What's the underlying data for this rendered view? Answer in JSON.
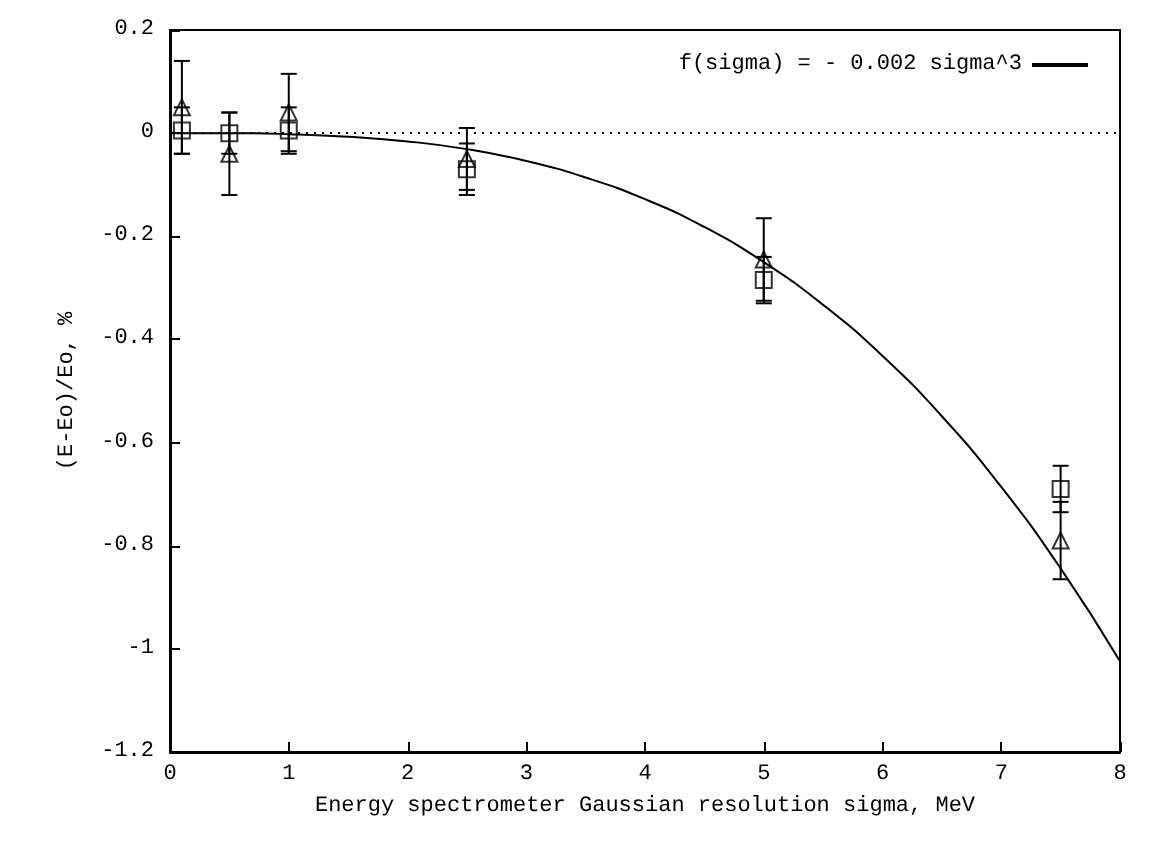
{
  "chart_data": {
    "type": "scatter",
    "xlabel": "Energy spectrometer Gaussian resolution sigma, MeV",
    "ylabel": "(E-Eo)/Eo, %",
    "xlim": [
      0,
      8
    ],
    "xticks": [
      0,
      1,
      2,
      3,
      4,
      5,
      6,
      7,
      8
    ],
    "ylim": [
      -1.2,
      0.2
    ],
    "yticks": [
      -1.2,
      -1,
      -0.8,
      -0.6,
      -0.4,
      -0.2,
      0,
      0.2
    ],
    "grid": false,
    "legend": "top right",
    "series": [
      {
        "marker": "triangle",
        "color": "#000000",
        "x": [
          0.1,
          0.5,
          1,
          2.5,
          5,
          7.5
        ],
        "values": [
          0.05,
          -0.04,
          0.04,
          -0.05,
          -0.245,
          -0.79
        ],
        "errors": [
          0.09,
          0.08,
          0.075,
          0.06,
          0.08,
          0.075
        ]
      },
      {
        "marker": "square",
        "color": "#000000",
        "x": [
          0.1,
          0.5,
          1,
          2.5,
          5,
          7.5
        ],
        "values": [
          0.005,
          0,
          0.005,
          -0.07,
          -0.285,
          -0.69
        ],
        "errors": [
          0.045,
          0.04,
          0.045,
          0.05,
          0.045,
          0.045
        ]
      },
      {
        "type": "line",
        "name": "f(sigma) = - 0.002 sigma^3",
        "color": "#000000",
        "marker": "none",
        "line_style": "solid",
        "x": [
          0,
          0.5,
          1,
          1.5,
          2,
          2.5,
          3,
          3.5,
          4,
          4.5,
          5,
          5.5,
          6,
          6.5,
          7,
          7.5,
          8
        ],
        "values": [
          0,
          0,
          -0.002,
          -0.007,
          -0.016,
          -0.031,
          -0.054,
          -0.086,
          -0.128,
          -0.182,
          -0.25,
          -0.333,
          -0.432,
          -0.549,
          -0.686,
          -0.844,
          -1.024
        ]
      }
    ],
    "ref_lines": [
      {
        "axis": "y",
        "value": 0,
        "color": "#000000",
        "line_style": "dotted"
      }
    ]
  }
}
